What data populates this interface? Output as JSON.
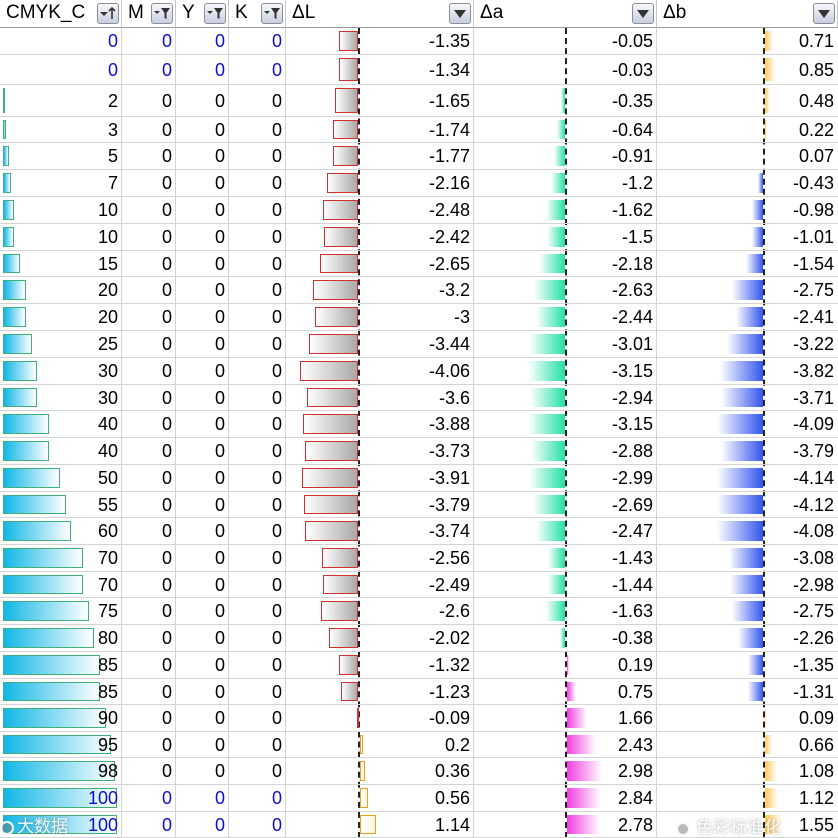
{
  "columns": [
    {
      "key": "c",
      "label": "CMYK_C",
      "filter_icon": "sort-ascending-filter-icon"
    },
    {
      "key": "m",
      "label": "M",
      "filter_icon": "filter-funnel-icon"
    },
    {
      "key": "y",
      "label": "Y",
      "filter_icon": "filter-funnel-icon"
    },
    {
      "key": "k",
      "label": "K",
      "filter_icon": "filter-funnel-icon"
    },
    {
      "key": "dl",
      "label": "ΔL",
      "filter_icon": "dropdown-arrow-icon"
    },
    {
      "key": "da",
      "label": "Δa",
      "filter_icon": "dropdown-arrow-icon"
    },
    {
      "key": "db",
      "label": "Δb",
      "filter_icon": "dropdown-arrow-icon"
    }
  ],
  "rows": [
    {
      "c": "0",
      "m": "0",
      "y": "0",
      "k": "0",
      "dl": "-1.35",
      "da": "-0.05",
      "db": "0.71",
      "blue": true
    },
    {
      "c": "0",
      "m": "0",
      "y": "0",
      "k": "0",
      "dl": "-1.34",
      "da": "-0.03",
      "db": "0.85",
      "blue": true
    },
    {
      "c": "2",
      "m": "0",
      "y": "0",
      "k": "0",
      "dl": "-1.65",
      "da": "-0.35",
      "db": "0.48"
    },
    {
      "c": "3",
      "m": "0",
      "y": "0",
      "k": "0",
      "dl": "-1.74",
      "da": "-0.64",
      "db": "0.22"
    },
    {
      "c": "5",
      "m": "0",
      "y": "0",
      "k": "0",
      "dl": "-1.77",
      "da": "-0.91",
      "db": "0.07"
    },
    {
      "c": "7",
      "m": "0",
      "y": "0",
      "k": "0",
      "dl": "-2.16",
      "da": "-1.2",
      "db": "-0.43"
    },
    {
      "c": "10",
      "m": "0",
      "y": "0",
      "k": "0",
      "dl": "-2.48",
      "da": "-1.62",
      "db": "-0.98"
    },
    {
      "c": "10",
      "m": "0",
      "y": "0",
      "k": "0",
      "dl": "-2.42",
      "da": "-1.5",
      "db": "-1.01"
    },
    {
      "c": "15",
      "m": "0",
      "y": "0",
      "k": "0",
      "dl": "-2.65",
      "da": "-2.18",
      "db": "-1.54"
    },
    {
      "c": "20",
      "m": "0",
      "y": "0",
      "k": "0",
      "dl": "-3.2",
      "da": "-2.63",
      "db": "-2.75"
    },
    {
      "c": "20",
      "m": "0",
      "y": "0",
      "k": "0",
      "dl": "-3",
      "da": "-2.44",
      "db": "-2.41"
    },
    {
      "c": "25",
      "m": "0",
      "y": "0",
      "k": "0",
      "dl": "-3.44",
      "da": "-3.01",
      "db": "-3.22"
    },
    {
      "c": "30",
      "m": "0",
      "y": "0",
      "k": "0",
      "dl": "-4.06",
      "da": "-3.15",
      "db": "-3.82"
    },
    {
      "c": "30",
      "m": "0",
      "y": "0",
      "k": "0",
      "dl": "-3.6",
      "da": "-2.94",
      "db": "-3.71"
    },
    {
      "c": "40",
      "m": "0",
      "y": "0",
      "k": "0",
      "dl": "-3.88",
      "da": "-3.15",
      "db": "-4.09"
    },
    {
      "c": "40",
      "m": "0",
      "y": "0",
      "k": "0",
      "dl": "-3.73",
      "da": "-2.88",
      "db": "-3.79"
    },
    {
      "c": "50",
      "m": "0",
      "y": "0",
      "k": "0",
      "dl": "-3.91",
      "da": "-2.99",
      "db": "-4.14"
    },
    {
      "c": "55",
      "m": "0",
      "y": "0",
      "k": "0",
      "dl": "-3.79",
      "da": "-2.69",
      "db": "-4.12"
    },
    {
      "c": "60",
      "m": "0",
      "y": "0",
      "k": "0",
      "dl": "-3.74",
      "da": "-2.47",
      "db": "-4.08"
    },
    {
      "c": "70",
      "m": "0",
      "y": "0",
      "k": "0",
      "dl": "-2.56",
      "da": "-1.43",
      "db": "-3.08"
    },
    {
      "c": "70",
      "m": "0",
      "y": "0",
      "k": "0",
      "dl": "-2.49",
      "da": "-1.44",
      "db": "-2.98"
    },
    {
      "c": "75",
      "m": "0",
      "y": "0",
      "k": "0",
      "dl": "-2.6",
      "da": "-1.63",
      "db": "-2.75"
    },
    {
      "c": "80",
      "m": "0",
      "y": "0",
      "k": "0",
      "dl": "-2.02",
      "da": "-0.38",
      "db": "-2.26"
    },
    {
      "c": "85",
      "m": "0",
      "y": "0",
      "k": "0",
      "dl": "-1.32",
      "da": "0.19",
      "db": "-1.35"
    },
    {
      "c": "85",
      "m": "0",
      "y": "0",
      "k": "0",
      "dl": "-1.23",
      "da": "0.75",
      "db": "-1.31"
    },
    {
      "c": "90",
      "m": "0",
      "y": "0",
      "k": "0",
      "dl": "-0.09",
      "da": "1.66",
      "db": "0.09"
    },
    {
      "c": "95",
      "m": "0",
      "y": "0",
      "k": "0",
      "dl": "0.2",
      "da": "2.43",
      "db": "0.66"
    },
    {
      "c": "98",
      "m": "0",
      "y": "0",
      "k": "0",
      "dl": "0.36",
      "da": "2.98",
      "db": "1.08"
    },
    {
      "c": "100",
      "m": "0",
      "y": "0",
      "k": "0",
      "dl": "0.56",
      "da": "2.84",
      "db": "1.12",
      "blue": true
    },
    {
      "c": "100",
      "m": "0",
      "y": "0",
      "k": "0",
      "dl": "1.14",
      "da": "2.78",
      "db": "1.55",
      "blue": true
    }
  ],
  "bar_ranges": {
    "c": [
      0,
      100
    ],
    "dl": [
      -4.14,
      1.14
    ],
    "da": [
      -3.15,
      3.15
    ],
    "db": [
      -4.14,
      4.14
    ]
  },
  "colors": {
    "c_bar": "#11b7e6",
    "c_bar_border": "#3fb07a",
    "dl_neg_border": "#d22f2f",
    "dl_neg_fill": "#a8a8a8",
    "dl_pos": "#f0a020",
    "da_neg": "#23e0a6",
    "da_pos": "#f03fe0",
    "db_neg": "#3355ee",
    "db_pos": "#ffc85a",
    "blue_text": "#1010cc"
  },
  "watermarks": [
    {
      "name": "wechat-watermark-left",
      "text": "大数据"
    },
    {
      "name": "wechat-watermark-right",
      "text": "色彩标准化"
    }
  ]
}
